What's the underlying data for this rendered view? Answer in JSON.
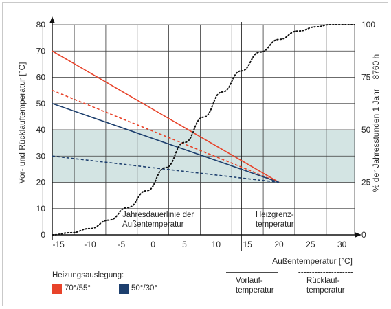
{
  "chart_data": {
    "type": "line",
    "ylabel_left": "Vor- und Rücklauftemperatur [°C]",
    "ylabel_right": "% der Jahresstunden   1 Jahr = 8760 h",
    "xlabel": "Außentemperatur [°C]",
    "xlim": [
      -16,
      32
    ],
    "ylim_left": [
      0,
      80
    ],
    "ylim_right": [
      0,
      100
    ],
    "x_ticks": [
      "-15",
      "-10",
      "-5",
      "0",
      "5",
      "10",
      "15",
      "20",
      "25",
      "30"
    ],
    "y_ticks_left": [
      "0",
      "10",
      "20",
      "30",
      "40",
      "50",
      "60",
      "70",
      "80"
    ],
    "y_ticks_right": [
      "0",
      "25",
      "50",
      "75",
      "100"
    ],
    "band": {
      "y_from": 20,
      "y_to": 40,
      "color": "#d3e4e3"
    },
    "heizgrenze_x": 14,
    "annotations": {
      "jahresdauerlinie": [
        "Jahresdauerlinie der",
        "Außentemperatur"
      ],
      "heizgrenz": [
        "Heizgrenz-",
        "temperatur"
      ]
    },
    "series": [
      {
        "name": "70°/55°",
        "kind": "Vorlauftemperatur",
        "color": "#e8432a",
        "dash": false,
        "x": [
          -16,
          20
        ],
        "y": [
          70,
          20
        ]
      },
      {
        "name": "70°/55°",
        "kind": "Rücklauftemperatur",
        "color": "#e8432a",
        "dash": true,
        "x": [
          -16,
          20
        ],
        "y": [
          55,
          20
        ]
      },
      {
        "name": "50°/30°",
        "kind": "Vorlauftemperatur",
        "color": "#1d3f6e",
        "dash": false,
        "x": [
          -16,
          20
        ],
        "y": [
          50,
          20
        ]
      },
      {
        "name": "50°/30°",
        "kind": "Rücklauftemperatur",
        "color": "#1d3f6e",
        "dash": true,
        "x": [
          -16,
          20
        ],
        "y": [
          30,
          20
        ]
      }
    ],
    "jahresdauerlinie": {
      "axis": "right",
      "x": [
        -16,
        -13,
        -10,
        -7,
        -4,
        -1,
        2,
        5,
        8,
        11,
        14,
        17,
        20,
        23,
        26,
        28,
        30,
        32
      ],
      "y": [
        0,
        1,
        3,
        7,
        13,
        21,
        32,
        44,
        56,
        68,
        78,
        87,
        93,
        97,
        99,
        100,
        100,
        100
      ]
    },
    "legend": {
      "title": "Heizungsauslegung:",
      "items": [
        {
          "label": "70°/55°",
          "color": "#e8432a"
        },
        {
          "label": "50°/30°",
          "color": "#1d3f6e"
        }
      ],
      "line_types": [
        {
          "label": [
            "Vorlauf-",
            "temperatur"
          ],
          "style": "solid"
        },
        {
          "label": [
            "Rücklauf-",
            "temperatur"
          ],
          "style": "dotted"
        }
      ]
    }
  }
}
